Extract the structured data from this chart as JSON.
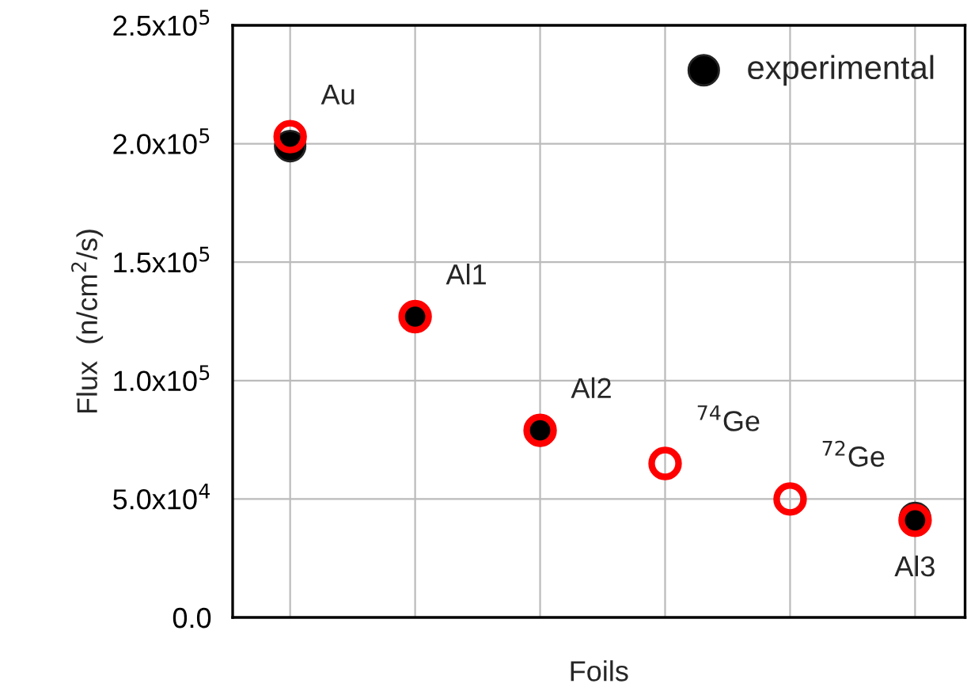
{
  "chart_data": {
    "type": "scatter",
    "xlabel": "Foils",
    "ylabel": "Flux  (n/cm$^{2}$/s)",
    "categories": [
      null,
      null,
      null,
      null,
      null,
      null
    ],
    "series": [
      {
        "name": "experimental",
        "color": "#000000",
        "values": [
          199000,
          127000,
          79000,
          null,
          null,
          42000
        ]
      },
      {
        "color": "#ff0000",
        "values": [
          203000,
          127000,
          79000,
          65000,
          50000,
          41000
        ]
      }
    ],
    "ylim": [
      0,
      250000
    ],
    "yticks": [
      {
        "value": 0,
        "label": "0.0"
      },
      {
        "value": 50000,
        "label": "5.0x10$^{4}$"
      },
      {
        "value": 100000,
        "label": "1.0x10$^{5}$"
      },
      {
        "value": 150000,
        "label": "1.5x10$^{5}$"
      },
      {
        "value": 200000,
        "label": "2.0x10$^{5}$"
      },
      {
        "value": 250000,
        "label": "2.5x10$^{5}$"
      }
    ],
    "annotations": [
      "Au",
      "Al1",
      "Al2",
      "$^{74}$Ge",
      "$^{72}$Ge",
      "Al3"
    ],
    "grid": true,
    "legend": "top right",
    "marker": "circle"
  }
}
